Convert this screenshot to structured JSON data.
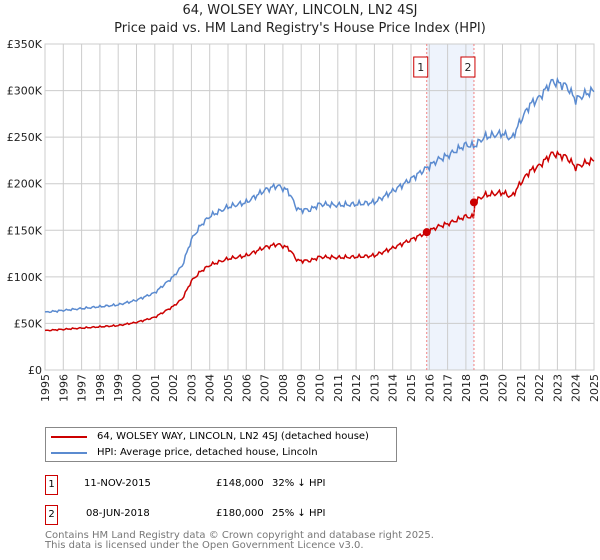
{
  "title": "64, WOLSEY WAY, LINCOLN, LN2 4SJ",
  "subtitle": "Price paid vs. HM Land Registry's House Price Index (HPI)",
  "legend": [
    {
      "label": "64, WOLSEY WAY, LINCOLN, LN2 4SJ (detached house)",
      "color": "#cc0000"
    },
    {
      "label": "HPI: Average price, detached house, Lincoln",
      "color": "#5b8bd0"
    }
  ],
  "sales": [
    {
      "num": "1",
      "date": "11-NOV-2015",
      "price": "£148,000",
      "hpi": "32% ↓ HPI",
      "year": 2015.86,
      "value": 148000
    },
    {
      "num": "2",
      "date": "08-JUN-2018",
      "price": "£180,000",
      "hpi": "25% ↓ HPI",
      "year": 2018.44,
      "value": 180000
    }
  ],
  "footer": [
    "Contains HM Land Registry data © Crown copyright and database right 2025.",
    "This data is licensed under the Open Government Licence v3.0."
  ],
  "chart_data": {
    "type": "line",
    "xlim": [
      1995,
      2025
    ],
    "ylim": [
      0,
      350000
    ],
    "yticks": [
      {
        "v": 0,
        "l": "£0"
      },
      {
        "v": 50000,
        "l": "£50K"
      },
      {
        "v": 100000,
        "l": "£100K"
      },
      {
        "v": 150000,
        "l": "£150K"
      },
      {
        "v": 200000,
        "l": "£200K"
      },
      {
        "v": 250000,
        "l": "£250K"
      },
      {
        "v": 300000,
        "l": "£300K"
      },
      {
        "v": 350000,
        "l": "£350K"
      }
    ],
    "xticks": [
      "1995",
      "1996",
      "1997",
      "1998",
      "1999",
      "2000",
      "2001",
      "2002",
      "2003",
      "2004",
      "2005",
      "2006",
      "2007",
      "2008",
      "2009",
      "2010",
      "2011",
      "2012",
      "2013",
      "2014",
      "2015",
      "2016",
      "2017",
      "2018",
      "2019",
      "2020",
      "2021",
      "2022",
      "2023",
      "2024",
      "2025"
    ],
    "hpi": [
      [
        1995,
        62000
      ],
      [
        1996,
        64000
      ],
      [
        1997,
        66000
      ],
      [
        1998,
        68000
      ],
      [
        1999,
        70000
      ],
      [
        2000,
        75000
      ],
      [
        2001,
        83000
      ],
      [
        2002,
        100000
      ],
      [
        2002.5,
        112000
      ],
      [
        2003,
        140000
      ],
      [
        2003.5,
        155000
      ],
      [
        2004,
        165000
      ],
      [
        2005,
        175000
      ],
      [
        2006,
        180000
      ],
      [
        2007,
        193000
      ],
      [
        2007.7,
        198000
      ],
      [
        2008.3,
        192000
      ],
      [
        2008.8,
        172000
      ],
      [
        2009.5,
        172000
      ],
      [
        2010,
        178000
      ],
      [
        2011,
        177000
      ],
      [
        2012,
        178000
      ],
      [
        2013,
        180000
      ],
      [
        2014,
        192000
      ],
      [
        2015,
        205000
      ],
      [
        2015.86,
        217000
      ],
      [
        2016.5,
        226000
      ],
      [
        2017,
        230000
      ],
      [
        2018,
        242000
      ],
      [
        2018.44,
        240000
      ],
      [
        2019,
        250000
      ],
      [
        2020,
        254000
      ],
      [
        2020.5,
        248000
      ],
      [
        2021,
        268000
      ],
      [
        2021.5,
        285000
      ],
      [
        2022,
        292000
      ],
      [
        2022.7,
        310000
      ],
      [
        2023.5,
        305000
      ],
      [
        2024,
        290000
      ],
      [
        2024.5,
        296000
      ],
      [
        2025,
        300000
      ]
    ],
    "series_names": [
      "64, WOLSEY WAY, LINCOLN, LN2 4SJ (detached house)",
      "HPI: Average price, detached house, Lincoln"
    ]
  }
}
